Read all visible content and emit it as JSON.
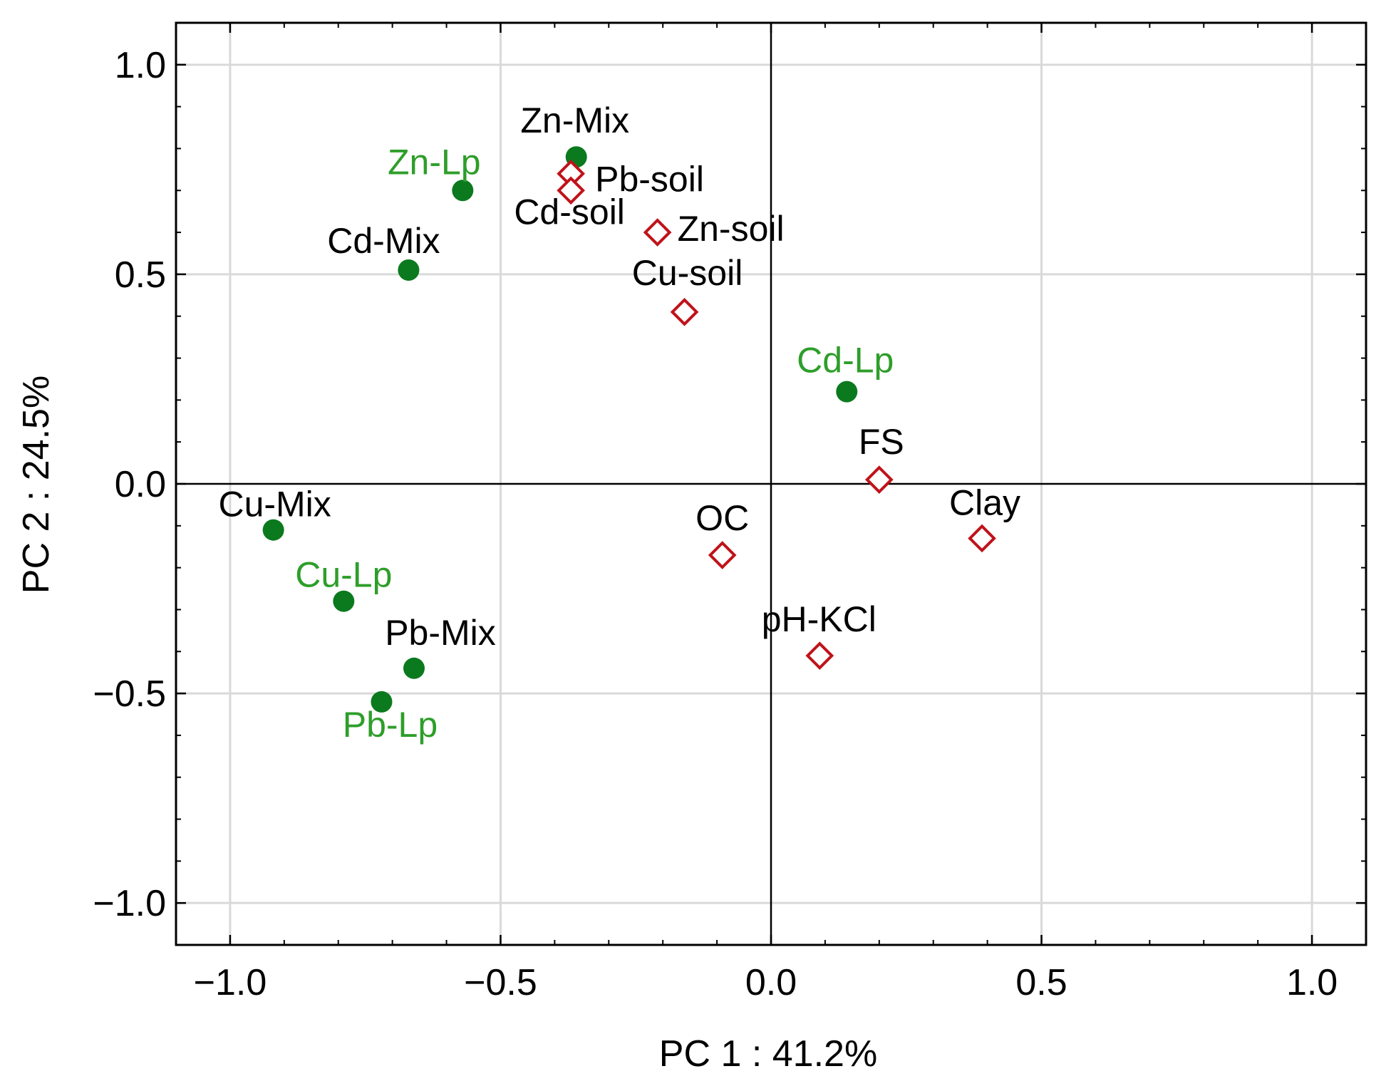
{
  "chart_data": {
    "type": "scatter",
    "title": "",
    "xlabel": "PC 1 : 41.2%",
    "ylabel": "PC 2 : 24.5%",
    "xlim": [
      -1.1,
      1.1
    ],
    "ylim": [
      -1.1,
      1.1
    ],
    "grid": true,
    "xticks": [
      -1.0,
      -0.5,
      0.0,
      0.5,
      1.0
    ],
    "yticks": [
      -1.0,
      -0.5,
      0.0,
      0.5,
      1.0
    ],
    "xtick_labels": [
      "−1.0",
      "−0.5",
      "0.0",
      "0.5",
      "1.0"
    ],
    "ytick_labels": [
      "−1.0",
      "−0.5",
      "0.0",
      "0.5",
      "1.0"
    ],
    "colors": {
      "circle_fill": "#0b7a1e",
      "diamond_stroke": "#c0121a",
      "green_label": "#2e9e2a",
      "black_label": "#000000",
      "grid": "#d9d9d9"
    },
    "series": [
      {
        "name": "Mix",
        "marker": "circle",
        "label_color": "black",
        "points": [
          {
            "label": "Zn-Mix",
            "x": -0.36,
            "y": 0.78
          },
          {
            "label": "Cd-Mix",
            "x": -0.67,
            "y": 0.51
          },
          {
            "label": "Cu-Mix",
            "x": -0.92,
            "y": -0.11
          },
          {
            "label": "Pb-Mix",
            "x": -0.66,
            "y": -0.44
          }
        ]
      },
      {
        "name": "Lp",
        "marker": "circle",
        "label_color": "green",
        "points": [
          {
            "label": "Zn-Lp",
            "x": -0.57,
            "y": 0.7
          },
          {
            "label": "Cd-Lp",
            "x": 0.14,
            "y": 0.22
          },
          {
            "label": "Cu-Lp",
            "x": -0.79,
            "y": -0.28
          },
          {
            "label": "Pb-Lp",
            "x": -0.72,
            "y": -0.52
          }
        ]
      },
      {
        "name": "soil",
        "marker": "diamond",
        "label_color": "black",
        "points": [
          {
            "label": "Pb-soil",
            "x": -0.37,
            "y": 0.74
          },
          {
            "label": "Cd-soil",
            "x": -0.37,
            "y": 0.7
          },
          {
            "label": "Zn-soil",
            "x": -0.21,
            "y": 0.6
          },
          {
            "label": "Cu-soil",
            "x": -0.16,
            "y": 0.41
          },
          {
            "label": "FS",
            "x": 0.2,
            "y": 0.01
          },
          {
            "label": "Clay",
            "x": 0.39,
            "y": -0.13
          },
          {
            "label": "OC",
            "x": -0.09,
            "y": -0.17
          },
          {
            "label": "pH-KCl",
            "x": 0.09,
            "y": -0.41
          }
        ]
      }
    ]
  }
}
